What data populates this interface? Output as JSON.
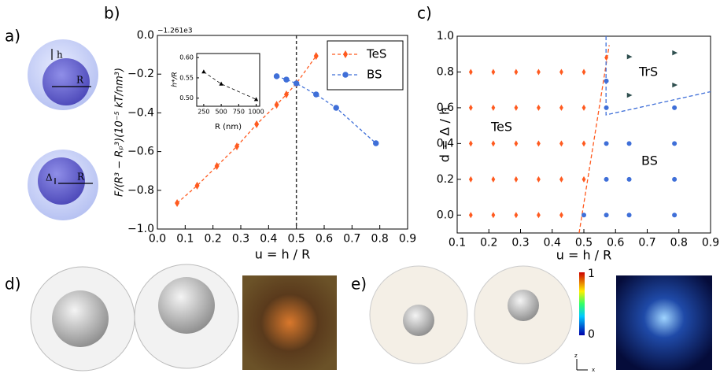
{
  "panel_labels": [
    "a)",
    "b)",
    "c)",
    "d)",
    "e)"
  ],
  "diagram": {
    "top": [
      "h",
      "R"
    ],
    "bottom": [
      "Δ",
      "R"
    ]
  },
  "colorbar": {
    "ticks": [
      1,
      0
    ],
    "axes": [
      "z",
      "x"
    ]
  },
  "chart_data": [
    {
      "type": "line",
      "xlabel": "u = h / R",
      "ylabel": "F/(R³ − Rₚ³)(10⁻⁵ kT/nm³)",
      "offset_text": "−1.261e3",
      "xlim": [
        0,
        0.9
      ],
      "ylim": [
        -1.0,
        0.0
      ],
      "xticks": [
        {
          "value": 0,
          "label": "0.0"
        },
        0.1,
        0.2,
        0.3,
        0.4,
        0.5,
        0.6,
        0.7,
        0.8,
        0.9
      ],
      "yticks": [
        {
          "value": -1.0,
          "label": "−1.0"
        },
        {
          "value": -0.8,
          "label": "−0.8"
        },
        {
          "value": -0.6,
          "label": "−0.6"
        },
        {
          "value": -0.4,
          "label": "−0.4"
        },
        {
          "value": -0.2,
          "label": "−0.2"
        },
        {
          "value": 0,
          "label": "0.0"
        }
      ],
      "vline": 0.5,
      "legend": "upper right",
      "series": [
        {
          "name": "TeS",
          "color": "#ff5a1f",
          "marker": "diamond",
          "x": [
            0.071,
            0.143,
            0.214,
            0.286,
            0.357,
            0.429,
            0.464,
            0.5,
            0.571
          ],
          "values": [
            -0.866,
            -0.776,
            -0.675,
            -0.573,
            -0.459,
            -0.358,
            -0.305,
            -0.248,
            -0.106
          ]
        },
        {
          "name": "BS",
          "color": "#3f6fd8",
          "marker": "circle",
          "x": [
            0.429,
            0.464,
            0.5,
            0.571,
            0.643,
            0.786
          ],
          "values": [
            -0.211,
            -0.228,
            -0.248,
            -0.305,
            -0.374,
            -0.557
          ]
        }
      ]
    },
    {
      "type": "line",
      "xlabel": "R (nm)",
      "ylabel": "h*/R",
      "xlim": [
        150,
        1050
      ],
      "ylim": [
        0.48,
        0.61
      ],
      "xticks": [
        250,
        500,
        750,
        1000
      ],
      "yticks": [
        {
          "value": 0.5,
          "label": "0.50"
        },
        {
          "value": 0.55,
          "label": "0.55"
        },
        {
          "value": 0.6,
          "label": "0.60"
        }
      ],
      "series": [
        {
          "color": "#000000",
          "marker": "triangle-up",
          "x": [
            250,
            500,
            1000
          ],
          "values": [
            0.565,
            0.535,
            0.497
          ]
        }
      ]
    },
    {
      "type": "scatter",
      "xlabel": "u = h / R",
      "ylabel": "d = Δ / h",
      "xlim": [
        0.1,
        0.9
      ],
      "ylim": [
        -0.1,
        1.0
      ],
      "xticks": [
        0.1,
        0.2,
        0.3,
        0.4,
        0.5,
        0.6,
        0.7,
        0.8,
        0.9
      ],
      "yticks": [
        {
          "value": 0,
          "label": "0.0"
        },
        0.2,
        0.4,
        0.6,
        0.8,
        {
          "value": 1,
          "label": "1.0"
        }
      ],
      "annotations": [
        {
          "text": "TeS",
          "color": "#ff5a1f"
        },
        {
          "text": "TrS",
          "color": "#2f4f4f"
        },
        {
          "text": "BS",
          "color": "#3f6fd8"
        }
      ],
      "series": [
        {
          "color": "#ff5a1f",
          "marker": "diamond",
          "x": [
            0.143,
            0.143,
            0.143,
            0.143,
            0.143,
            0.214,
            0.214,
            0.214,
            0.214,
            0.214,
            0.286,
            0.286,
            0.286,
            0.286,
            0.286,
            0.357,
            0.357,
            0.357,
            0.357,
            0.357,
            0.429,
            0.429,
            0.429,
            0.429,
            0.429,
            0.5,
            0.5,
            0.5,
            0.5,
            0.571
          ],
          "values": [
            0,
            0.2,
            0.4,
            0.6,
            0.8,
            0,
            0.2,
            0.4,
            0.6,
            0.8,
            0,
            0.2,
            0.4,
            0.6,
            0.8,
            0,
            0.2,
            0.4,
            0.6,
            0.8,
            0,
            0.2,
            0.4,
            0.6,
            0.8,
            0.2,
            0.4,
            0.6,
            0.8,
            0.88
          ]
        },
        {
          "color": "#3f6fd8",
          "marker": "circle",
          "x": [
            0.5,
            0.571,
            0.571,
            0.571,
            0.571,
            0.571,
            0.643,
            0.643,
            0.643,
            0.786,
            0.786,
            0.786,
            0.786
          ],
          "values": [
            0,
            0,
            0.2,
            0.4,
            0.6,
            0.75,
            0,
            0.2,
            0.4,
            0,
            0.2,
            0.4,
            0.6
          ]
        },
        {
          "color": "#2f4f4f",
          "marker": "triangle-right",
          "x": [
            0.643,
            0.643,
            0.786,
            0.786
          ],
          "values": [
            0.885,
            0.67,
            0.907,
            0.727
          ]
        }
      ],
      "lines": [
        {
          "color": "#ff5a1f",
          "x": [
            0.485,
            0.58
          ],
          "values": [
            -0.1,
            0.95
          ]
        },
        {
          "color": "#3f6fd8",
          "x": [
            0.57,
            0.57,
            0.9
          ],
          "values": [
            1.0,
            0.56,
            0.69
          ]
        }
      ]
    }
  ]
}
